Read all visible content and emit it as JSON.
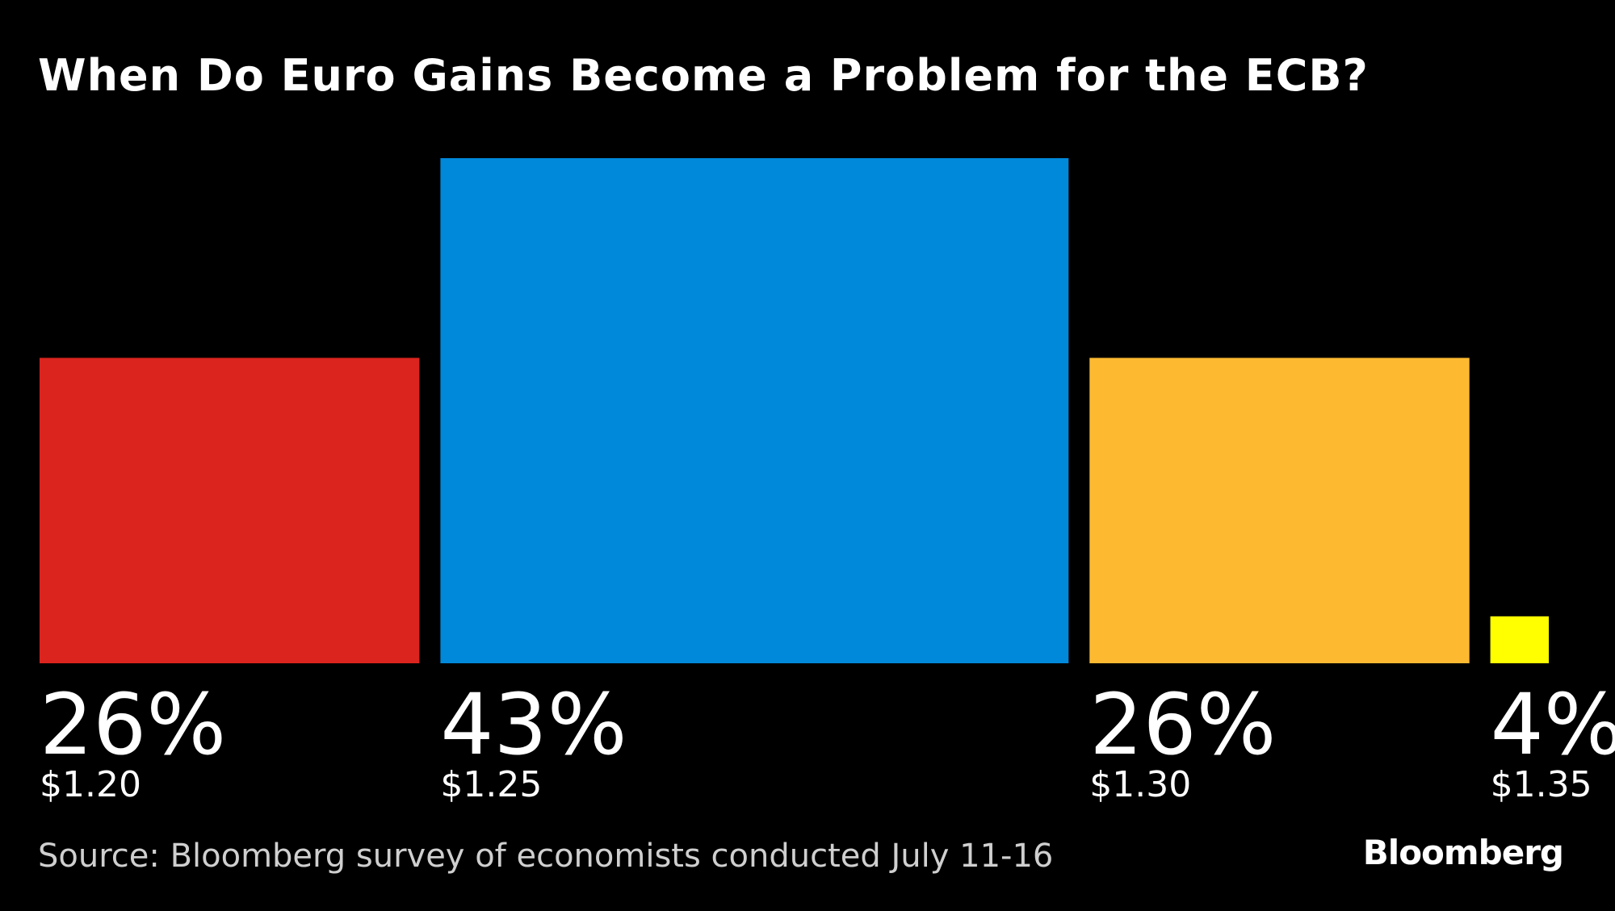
{
  "chart_data": {
    "type": "bar",
    "title": "When Do Euro Gains Become a Problem for the ECB?",
    "categories": [
      "$1.20",
      "$1.25",
      "$1.30",
      "$1.35"
    ],
    "values": [
      26,
      43,
      26,
      4
    ],
    "value_labels": [
      "26%",
      "43%",
      "26%",
      "4%"
    ],
    "colors": [
      "#db241e",
      "#0088da",
      "#fdba31",
      "#ffff00"
    ],
    "ylim": [
      0,
      43
    ],
    "grid": false,
    "source": "Source: Bloomberg survey of economists conducted July 11-16",
    "brand": "Bloomberg"
  }
}
